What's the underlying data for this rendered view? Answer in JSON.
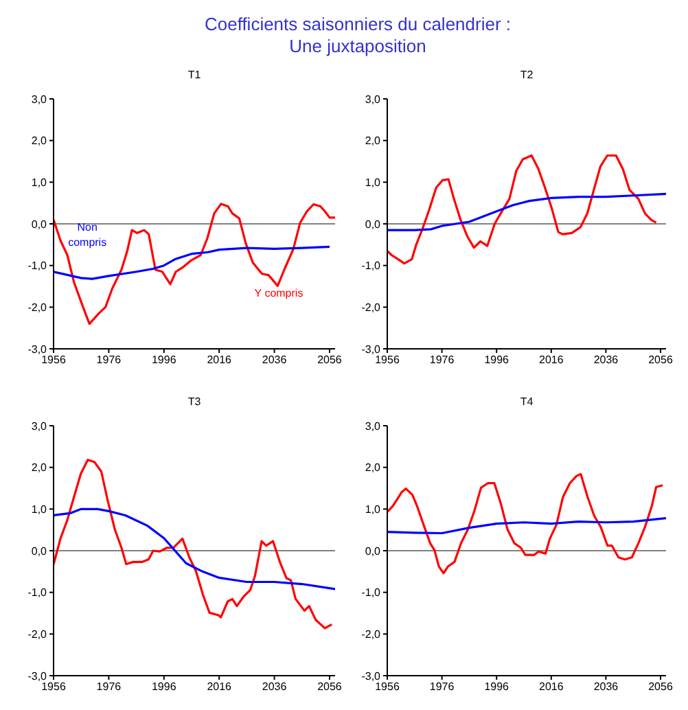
{
  "chart_data": [
    {
      "type": "line",
      "title": "T1",
      "annotations": [
        "Coefficients saisonniers du calendrier :",
        "Une juxtaposition"
      ],
      "xlim": [
        1956,
        2058
      ],
      "xticks": [
        1956,
        1976,
        1996,
        2016,
        2036,
        2056
      ],
      "ylim": [
        -3,
        3
      ],
      "yticks": [
        {
          "value": -3,
          "label": "-3,0"
        },
        {
          "value": -2,
          "label": "-2,0"
        },
        {
          "value": -1,
          "label": "-1,0"
        },
        {
          "value": 0,
          "label": "0,0"
        },
        {
          "value": 1,
          "label": "1,0"
        },
        {
          "value": 2,
          "label": "2,0"
        },
        {
          "value": 3,
          "label": "3,0"
        }
      ],
      "grid": false,
      "legend": false,
      "marker": "none",
      "line_style": "solid",
      "ref_lines": [
        {
          "axis": "y",
          "value": 0,
          "color": "#808080"
        }
      ],
      "series": [
        {
          "name": "Y compris",
          "color": "#ff0000",
          "x": [
            1956,
            1958.5,
            1961,
            1963.4,
            1966.7,
            1969,
            1972.4,
            1974.8,
            1977.3,
            1980.6,
            1982.7,
            1984.4,
            1986.3,
            1988.8,
            1990.5,
            1992.9,
            1995.4,
            1998.3,
            2000.3,
            2002.7,
            2006,
            2009.3,
            2011.7,
            2014.2,
            2016.7,
            2019.2,
            2020.8,
            2023.3,
            2025.7,
            2028.2,
            2031.5,
            2033.9,
            2037.2,
            2039.6,
            2042.9,
            2045.3,
            2047.8,
            2050.2,
            2052.7,
            2054.3,
            2056,
            2058
          ],
          "values": [
            0.1,
            -0.4,
            -0.75,
            -1.4,
            -2.0,
            -2.4,
            -2.15,
            -2.0,
            -1.55,
            -1.1,
            -0.65,
            -0.15,
            -0.22,
            -0.15,
            -0.25,
            -1.1,
            -1.15,
            -1.45,
            -1.15,
            -1.05,
            -0.87,
            -0.75,
            -0.35,
            0.25,
            0.48,
            0.42,
            0.25,
            0.13,
            -0.48,
            -0.93,
            -1.2,
            -1.23,
            -1.49,
            -1.1,
            -0.6,
            0.02,
            0.3,
            0.47,
            0.42,
            0.3,
            0.15,
            0.15
          ]
        },
        {
          "name": "Non compris",
          "color": "#0000ff",
          "x": [
            1956,
            1966,
            1970,
            1976,
            1986,
            1992,
            1996,
            2000,
            2006,
            2012,
            2016,
            2026,
            2036,
            2046,
            2056
          ],
          "values": [
            -1.15,
            -1.3,
            -1.32,
            -1.25,
            -1.15,
            -1.08,
            -1.0,
            -0.85,
            -0.72,
            -0.68,
            -0.62,
            -0.58,
            -0.6,
            -0.58,
            -0.55
          ]
        }
      ]
    },
    {
      "type": "line",
      "title": "T2",
      "xlim": [
        1956,
        2058
      ],
      "xticks": [
        1956,
        1976,
        1996,
        2016,
        2036,
        2056
      ],
      "ylim": [
        -3,
        3
      ],
      "yticks": [
        {
          "value": -3,
          "label": "-3,0"
        },
        {
          "value": -2,
          "label": "-2,0"
        },
        {
          "value": -1,
          "label": "-1,0"
        },
        {
          "value": 0,
          "label": "0,0"
        },
        {
          "value": 1,
          "label": "1,0"
        },
        {
          "value": 2,
          "label": "2,0"
        },
        {
          "value": 3,
          "label": "3,0"
        }
      ],
      "grid": false,
      "legend": false,
      "marker": "none",
      "line_style": "solid",
      "ref_lines": [
        {
          "axis": "y",
          "value": 0,
          "color": "#808080"
        }
      ],
      "series": [
        {
          "color": "#ff0000",
          "x": [
            1956,
            1957.6,
            1960,
            1962.2,
            1965,
            1966.6,
            1969,
            1971.4,
            1973.9,
            1976.3,
            1978.4,
            1980.4,
            1982.8,
            1985.3,
            1987.7,
            1990.1,
            1992.6,
            1995.3,
            1997.5,
            2000.7,
            2003.2,
            2005.6,
            2008.8,
            2011.3,
            2013.7,
            2016.2,
            2018.6,
            2020.2,
            2023.5,
            2026.7,
            2029.2,
            2031.6,
            2034,
            2036.5,
            2039.7,
            2042.2,
            2044.6,
            2047.9,
            2050.3,
            2052.7,
            2054.4
          ],
          "values": [
            -0.65,
            -0.75,
            -0.85,
            -0.95,
            -0.85,
            -0.5,
            -0.1,
            0.35,
            0.87,
            1.05,
            1.07,
            0.6,
            0.1,
            -0.3,
            -0.57,
            -0.42,
            -0.53,
            0,
            0.25,
            0.6,
            1.27,
            1.55,
            1.64,
            1.32,
            0.87,
            0.37,
            -0.2,
            -0.25,
            -0.22,
            -0.08,
            0.25,
            0.82,
            1.38,
            1.64,
            1.64,
            1.32,
            0.82,
            0.6,
            0.25,
            0.09,
            0.03
          ]
        },
        {
          "color": "#0000ff",
          "x": [
            1956,
            1966,
            1972,
            1976,
            1986,
            1996,
            2002,
            2008,
            2016,
            2026,
            2036,
            2046,
            2058
          ],
          "values": [
            -0.15,
            -0.15,
            -0.13,
            -0.05,
            0.05,
            0.3,
            0.45,
            0.55,
            0.62,
            0.65,
            0.65,
            0.68,
            0.72
          ]
        }
      ]
    },
    {
      "type": "line",
      "title": "T3",
      "xlim": [
        1956,
        2058
      ],
      "xticks": [
        1956,
        1976,
        1996,
        2016,
        2036,
        2056
      ],
      "ylim": [
        -3,
        3
      ],
      "yticks": [
        {
          "value": -3,
          "label": "-3,0"
        },
        {
          "value": -2,
          "label": "-2,0"
        },
        {
          "value": -1,
          "label": "-1,0"
        },
        {
          "value": 0,
          "label": "0,0"
        },
        {
          "value": 1,
          "label": "1,0"
        },
        {
          "value": 2,
          "label": "2,0"
        },
        {
          "value": 3,
          "label": "3,0"
        }
      ],
      "grid": false,
      "legend": false,
      "marker": "none",
      "line_style": "solid",
      "ref_lines": [
        {
          "axis": "y",
          "value": 0,
          "color": "#808080"
        }
      ],
      "series": [
        {
          "color": "#ff0000",
          "x": [
            1956,
            1958.5,
            1961,
            1963.4,
            1965.9,
            1968.4,
            1970.8,
            1973.3,
            1975.7,
            1978.2,
            1980.6,
            1982.3,
            1984.8,
            1988,
            1990.4,
            1992.1,
            1994.5,
            1997,
            1999.4,
            2002.7,
            2005.2,
            2007.6,
            2010.1,
            2012.5,
            2015.8,
            2016.6,
            2019.1,
            2020.8,
            2022.4,
            2024.9,
            2027.3,
            2029,
            2031.4,
            2033,
            2035.5,
            2038,
            2040.4,
            2042,
            2043.7,
            2046.9,
            2048.6,
            2051,
            2054.3,
            2056.8
          ],
          "values": [
            -0.33,
            0.29,
            0.74,
            1.29,
            1.85,
            2.18,
            2.13,
            1.9,
            1.18,
            0.51,
            0.07,
            -0.32,
            -0.27,
            -0.27,
            -0.21,
            0,
            -0.02,
            0.07,
            0.07,
            0.29,
            -0.16,
            -0.49,
            -1.05,
            -1.49,
            -1.55,
            -1.6,
            -1.22,
            -1.16,
            -1.33,
            -1.1,
            -0.94,
            -0.6,
            0.23,
            0.12,
            0.23,
            -0.27,
            -0.66,
            -0.71,
            -1.16,
            -1.44,
            -1.33,
            -1.66,
            -1.86,
            -1.77
          ]
        },
        {
          "color": "#0000ff",
          "x": [
            1956,
            1962,
            1966,
            1972,
            1976,
            1982,
            1990,
            1996,
            2000,
            2004,
            2010,
            2016,
            2026,
            2036,
            2046,
            2056,
            2058
          ],
          "values": [
            0.85,
            0.9,
            1.0,
            1.0,
            0.95,
            0.85,
            0.6,
            0.3,
            0.0,
            -0.3,
            -0.5,
            -0.65,
            -0.75,
            -0.75,
            -0.8,
            -0.9,
            -0.92
          ]
        }
      ]
    },
    {
      "type": "line",
      "title": "T4",
      "xlim": [
        1956,
        2058
      ],
      "xticks": [
        1956,
        1976,
        1996,
        2016,
        2036,
        2056
      ],
      "ylim": [
        -3,
        3
      ],
      "yticks": [
        {
          "value": -3,
          "label": "-3,0"
        },
        {
          "value": -2,
          "label": "-2,0"
        },
        {
          "value": -1,
          "label": "-1,0"
        },
        {
          "value": 0,
          "label": "0,0"
        },
        {
          "value": 1,
          "label": "1,0"
        },
        {
          "value": 2,
          "label": "2,0"
        },
        {
          "value": 3,
          "label": "3,0"
        }
      ],
      "grid": false,
      "legend": false,
      "marker": "none",
      "line_style": "solid",
      "ref_lines": [
        {
          "axis": "y",
          "value": 0,
          "color": "#808080"
        }
      ],
      "series": [
        {
          "color": "#ff0000",
          "x": [
            1956,
            1958,
            1959.6,
            1961.2,
            1962.8,
            1965.2,
            1966.9,
            1969.3,
            1971.7,
            1973.3,
            1974.9,
            1976.6,
            1978.2,
            1980.6,
            1983,
            1985.5,
            1987.9,
            1990.3,
            1992.8,
            1995.2,
            1997.6,
            2000,
            2002.5,
            2004.9,
            2006.5,
            2009.8,
            2011.4,
            2013.9,
            2015.5,
            2017.9,
            2020.3,
            2022.8,
            2025.2,
            2026.8,
            2029.3,
            2031.7,
            2034.1,
            2036.6,
            2038.2,
            2040.6,
            2043,
            2045.5,
            2047.9,
            2050.3,
            2052.8,
            2054.4,
            2056.8
          ],
          "values": [
            0.93,
            1.07,
            1.23,
            1.4,
            1.49,
            1.34,
            1.07,
            0.62,
            0.18,
            0.01,
            -0.38,
            -0.54,
            -0.38,
            -0.27,
            0.18,
            0.51,
            0.96,
            1.51,
            1.62,
            1.62,
            1.12,
            0.51,
            0.18,
            0.07,
            -0.1,
            -0.1,
            -0.02,
            -0.07,
            0.29,
            0.62,
            1.29,
            1.62,
            1.79,
            1.84,
            1.29,
            0.84,
            0.57,
            0.12,
            0.12,
            -0.16,
            -0.21,
            -0.16,
            0.18,
            0.57,
            1.07,
            1.53,
            1.57
          ]
        },
        {
          "color": "#0000ff",
          "x": [
            1956,
            1966,
            1976,
            1986,
            1996,
            2006,
            2016,
            2026,
            2036,
            2046,
            2058
          ],
          "values": [
            0.45,
            0.43,
            0.42,
            0.55,
            0.65,
            0.68,
            0.65,
            0.7,
            0.68,
            0.7,
            0.78
          ]
        }
      ]
    }
  ]
}
